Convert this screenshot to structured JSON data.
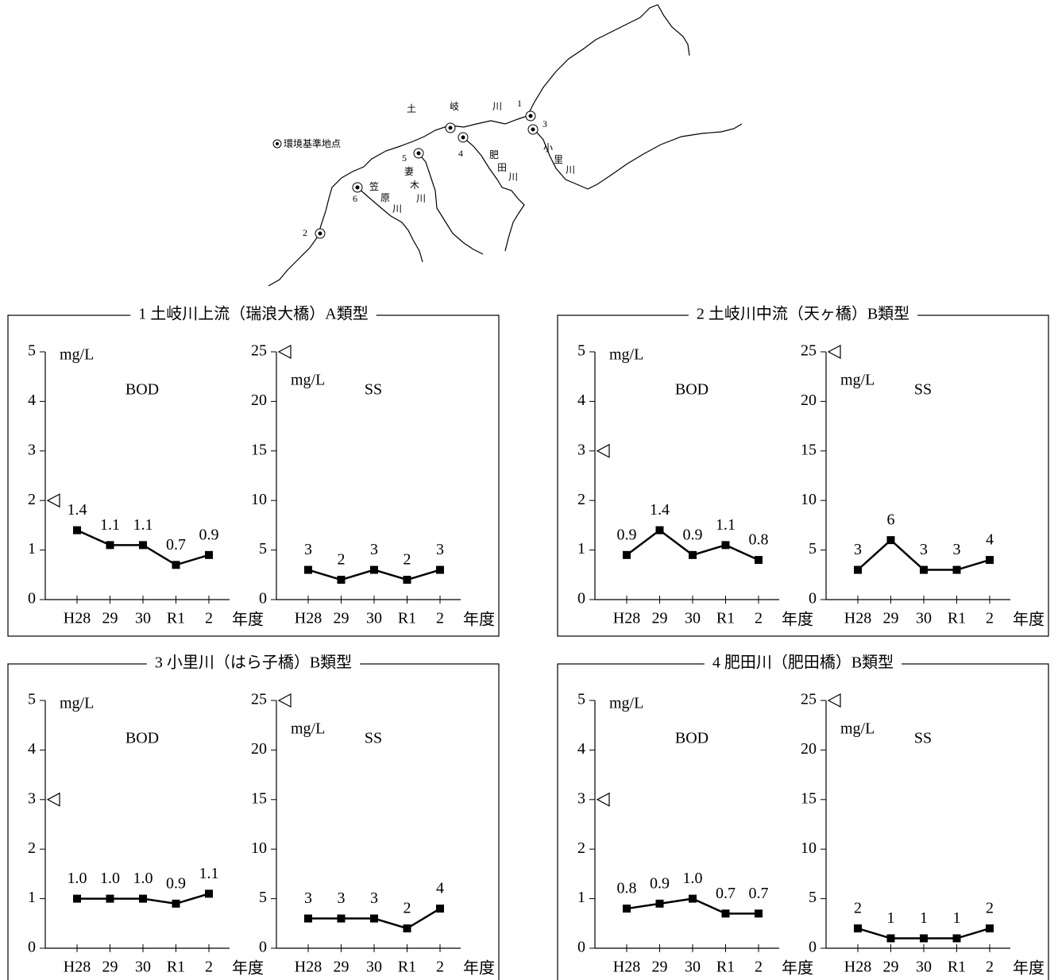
{
  "map": {
    "legend": "環境基準地点",
    "labels": [
      "土",
      "岐",
      "川",
      "1",
      "3",
      "4",
      "5",
      "6",
      "2",
      "肥",
      "田",
      "川",
      "小",
      "里",
      "川",
      "妻",
      "木",
      "川",
      "笠",
      "原",
      "川"
    ]
  },
  "panels": [
    {
      "title": "1 土岐川上流（瑞浪大橋）A類型"
    },
    {
      "title": "2 土岐川中流（天ヶ橋）B類型"
    },
    {
      "title": "3 小里川（はら子橋）B類型"
    },
    {
      "title": "4 肥田川（肥田橋）B類型"
    }
  ],
  "chart_data": [
    {
      "type": "line",
      "title": "BOD",
      "y_label": "mg/L",
      "x_label": "年度",
      "categories": [
        "H28",
        "29",
        "30",
        "R1",
        "2"
      ],
      "values": [
        1.4,
        1.1,
        1.1,
        0.7,
        0.9
      ],
      "standard": 2,
      "color": "#000000",
      "ylim": [
        0,
        5
      ],
      "yticks": [
        0,
        1,
        2,
        3,
        4,
        5
      ]
    },
    {
      "type": "line",
      "title": "SS",
      "y_label": "mg/L",
      "x_label": "年度",
      "categories": [
        "H28",
        "29",
        "30",
        "R1",
        "2"
      ],
      "values": [
        3,
        2,
        3,
        2,
        3
      ],
      "standard": 25,
      "color": "#000000",
      "ylim": [
        0,
        25
      ],
      "yticks": [
        0,
        5,
        10,
        15,
        20,
        25
      ]
    },
    {
      "type": "line",
      "title": "BOD",
      "y_label": "mg/L",
      "x_label": "年度",
      "categories": [
        "H28",
        "29",
        "30",
        "R1",
        "2"
      ],
      "values": [
        0.9,
        1.4,
        0.9,
        1.1,
        0.8
      ],
      "standard": 3,
      "color": "#000000",
      "ylim": [
        0,
        5
      ],
      "yticks": [
        0,
        1,
        2,
        3,
        4,
        5
      ]
    },
    {
      "type": "line",
      "title": "SS",
      "y_label": "mg/L",
      "x_label": "年度",
      "categories": [
        "H28",
        "29",
        "30",
        "R1",
        "2"
      ],
      "values": [
        3,
        6,
        3,
        3,
        4
      ],
      "standard": 25,
      "color": "#000000",
      "ylim": [
        0,
        25
      ],
      "yticks": [
        0,
        5,
        10,
        15,
        20,
        25
      ]
    },
    {
      "type": "line",
      "title": "BOD",
      "y_label": "mg/L",
      "x_label": "年度",
      "categories": [
        "H28",
        "29",
        "30",
        "R1",
        "2"
      ],
      "values": [
        1,
        1,
        1,
        0.9,
        1.1
      ],
      "value_labels": [
        "1.0",
        "1.0",
        "1.0",
        "0.9",
        "1.1"
      ],
      "standard": 3,
      "color": "#000000",
      "ylim": [
        0,
        5
      ],
      "yticks": [
        0,
        1,
        2,
        3,
        4,
        5
      ]
    },
    {
      "type": "line",
      "title": "SS",
      "y_label": "mg/L",
      "x_label": "年度",
      "categories": [
        "H28",
        "29",
        "30",
        "R1",
        "2"
      ],
      "values": [
        3,
        3,
        3,
        2,
        4
      ],
      "standard": 25,
      "color": "#000000",
      "ylim": [
        0,
        25
      ],
      "yticks": [
        0,
        5,
        10,
        15,
        20,
        25
      ]
    },
    {
      "type": "line",
      "title": "BOD",
      "y_label": "mg/L",
      "x_label": "年度",
      "categories": [
        "H28",
        "29",
        "30",
        "R1",
        "2"
      ],
      "values": [
        0.8,
        0.9,
        1,
        0.7,
        0.7
      ],
      "value_labels": [
        "0.8",
        "0.9",
        "1.0",
        "0.7",
        "0.7"
      ],
      "standard": 3,
      "color": "#000000",
      "ylim": [
        0,
        5
      ],
      "yticks": [
        0,
        1,
        2,
        3,
        4,
        5
      ]
    },
    {
      "type": "line",
      "title": "SS",
      "y_label": "mg/L",
      "x_label": "年度",
      "categories": [
        "H28",
        "29",
        "30",
        "R1",
        "2"
      ],
      "values": [
        2,
        1,
        1,
        1,
        2
      ],
      "standard": 25,
      "color": "#000000",
      "ylim": [
        0,
        25
      ],
      "yticks": [
        0,
        5,
        10,
        15,
        20,
        25
      ]
    }
  ]
}
